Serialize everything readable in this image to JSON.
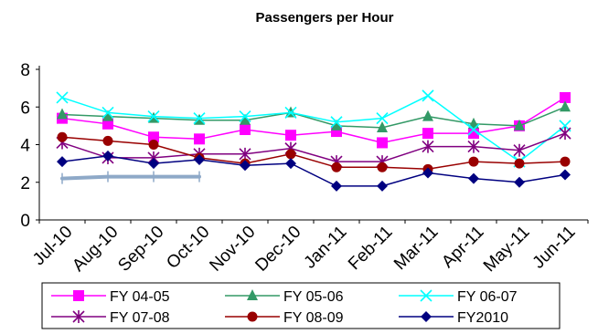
{
  "chart_data": {
    "type": "line",
    "title": "Passengers per Hour",
    "xlabel": "",
    "ylabel": "",
    "categories": [
      "Jul-10",
      "Aug-10",
      "Sep-10",
      "Oct-10",
      "Nov-10",
      "Dec-10",
      "Jan-11",
      "Feb-11",
      "Mar-11",
      "Apr-11",
      "May-11",
      "Jun-11"
    ],
    "ylim": [
      0,
      8
    ],
    "yticks": [
      "0",
      "2",
      "4",
      "6",
      "8"
    ],
    "grid": false,
    "legend_position": "bottom",
    "series": [
      {
        "name": "FY 04-05",
        "color": "#ff00ff",
        "marker": "square",
        "values": [
          5.4,
          5.1,
          4.4,
          4.3,
          4.8,
          4.5,
          4.7,
          4.1,
          4.6,
          4.6,
          5.0,
          6.5
        ]
      },
      {
        "name": "FY 05-06",
        "color": "#339966",
        "marker": "triangle",
        "values": [
          5.6,
          5.5,
          5.4,
          5.3,
          5.3,
          5.7,
          5.0,
          4.9,
          5.5,
          5.1,
          5.0,
          6.0
        ]
      },
      {
        "name": "FY 06-07",
        "color": "#00ffff",
        "marker": "x",
        "values": [
          6.5,
          5.7,
          5.5,
          5.4,
          5.5,
          5.7,
          5.2,
          5.4,
          6.6,
          4.8,
          3.1,
          5.0
        ]
      },
      {
        "name": "FY 07-08",
        "color": "#800080",
        "marker": "star",
        "values": [
          4.1,
          3.3,
          3.3,
          3.5,
          3.5,
          3.8,
          3.1,
          3.1,
          3.9,
          3.9,
          3.7,
          4.6
        ]
      },
      {
        "name": "FY 08-09",
        "color": "#990000",
        "marker": "circle",
        "values": [
          4.4,
          4.2,
          4.0,
          3.3,
          3.0,
          3.5,
          2.8,
          2.8,
          2.7,
          3.1,
          3.0,
          3.1
        ]
      },
      {
        "name": "FY2010",
        "color": "#000080",
        "marker": "diamond",
        "values": [
          3.1,
          3.4,
          3.0,
          3.2,
          2.9,
          3.0,
          1.8,
          1.8,
          2.5,
          2.2,
          2.0,
          2.4
        ]
      },
      {
        "name": "",
        "color": "#8ea9c8",
        "marker": "dash",
        "values": [
          2.2,
          2.3,
          2.3,
          2.3,
          null,
          null,
          null,
          null,
          null,
          null,
          null,
          null
        ]
      }
    ]
  }
}
